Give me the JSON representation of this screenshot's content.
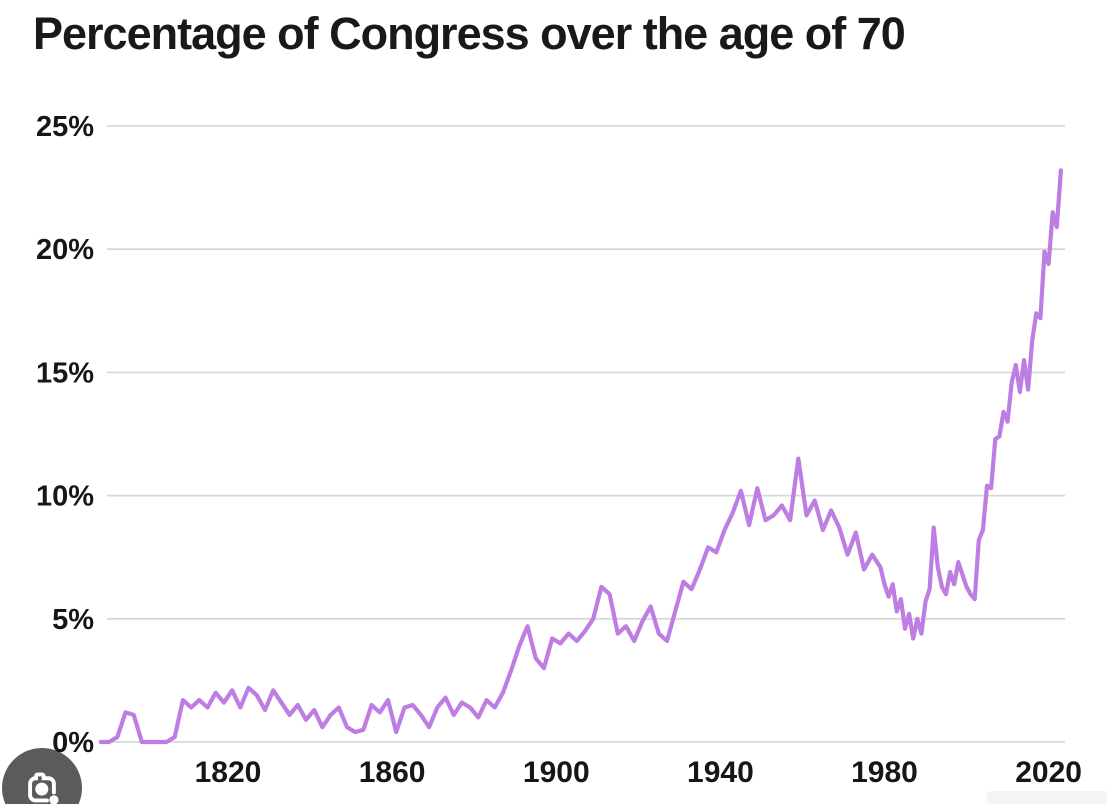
{
  "title": "Percentage of Congress over the age of 70",
  "colors": {
    "line": "#bd7de3",
    "grid": "#d8d8d8",
    "axis_text": "#161616",
    "title_text": "#191919",
    "lens_button_bg": "#3e3e3e",
    "lens_glyph": "#ffffff",
    "bottom_bar": "#f4f4f5",
    "background": "#ffffff"
  },
  "icons": {
    "lens_button": "camera-lens-icon"
  },
  "chart_data": {
    "type": "line",
    "title": "Percentage of Congress over the age of 70",
    "xlabel": "",
    "ylabel": "",
    "legend": "none",
    "grid": "horizontal",
    "xlim": [
      1790.5,
      2024
    ],
    "ylim": [
      0,
      25
    ],
    "xticks": {
      "values": [
        1820,
        1860,
        1900,
        1940,
        1980,
        2020
      ],
      "labels": [
        "1820",
        "1860",
        "1900",
        "1940",
        "1980",
        "2020"
      ]
    },
    "yticks": {
      "values": [
        0,
        5,
        10,
        15,
        20,
        25
      ],
      "labels": [
        "0%",
        "5%",
        "10%",
        "15%",
        "20%",
        "25%"
      ]
    },
    "series_name": "Percentage of Congress over the age of 70",
    "points": [
      [
        1789,
        0
      ],
      [
        1791,
        0
      ],
      [
        1793,
        0.2
      ],
      [
        1795,
        1.2
      ],
      [
        1797,
        1.1
      ],
      [
        1799,
        0
      ],
      [
        1801,
        0
      ],
      [
        1803,
        0
      ],
      [
        1805,
        0
      ],
      [
        1807,
        0.2
      ],
      [
        1809,
        1.7
      ],
      [
        1811,
        1.4
      ],
      [
        1813,
        1.7
      ],
      [
        1815,
        1.4
      ],
      [
        1817,
        2.0
      ],
      [
        1819,
        1.6
      ],
      [
        1821,
        2.1
      ],
      [
        1823,
        1.4
      ],
      [
        1825,
        2.2
      ],
      [
        1827,
        1.9
      ],
      [
        1829,
        1.3
      ],
      [
        1831,
        2.1
      ],
      [
        1833,
        1.6
      ],
      [
        1835,
        1.1
      ],
      [
        1837,
        1.5
      ],
      [
        1839,
        0.9
      ],
      [
        1841,
        1.3
      ],
      [
        1843,
        0.6
      ],
      [
        1845,
        1.1
      ],
      [
        1847,
        1.4
      ],
      [
        1849,
        0.6
      ],
      [
        1851,
        0.4
      ],
      [
        1853,
        0.5
      ],
      [
        1855,
        1.5
      ],
      [
        1857,
        1.2
      ],
      [
        1859,
        1.7
      ],
      [
        1861,
        0.4
      ],
      [
        1863,
        1.4
      ],
      [
        1865,
        1.5
      ],
      [
        1867,
        1.1
      ],
      [
        1869,
        0.6
      ],
      [
        1871,
        1.4
      ],
      [
        1873,
        1.8
      ],
      [
        1875,
        1.1
      ],
      [
        1877,
        1.6
      ],
      [
        1879,
        1.4
      ],
      [
        1881,
        1.0
      ],
      [
        1883,
        1.7
      ],
      [
        1885,
        1.4
      ],
      [
        1887,
        2.0
      ],
      [
        1889,
        2.9
      ],
      [
        1891,
        3.9
      ],
      [
        1893,
        4.7
      ],
      [
        1895,
        3.4
      ],
      [
        1897,
        3.0
      ],
      [
        1899,
        4.2
      ],
      [
        1901,
        4.0
      ],
      [
        1903,
        4.4
      ],
      [
        1905,
        4.1
      ],
      [
        1907,
        4.5
      ],
      [
        1909,
        5.0
      ],
      [
        1911,
        6.3
      ],
      [
        1913,
        6.0
      ],
      [
        1915,
        4.4
      ],
      [
        1917,
        4.7
      ],
      [
        1919,
        4.1
      ],
      [
        1921,
        4.9
      ],
      [
        1923,
        5.5
      ],
      [
        1925,
        4.4
      ],
      [
        1927,
        4.1
      ],
      [
        1929,
        5.3
      ],
      [
        1931,
        6.5
      ],
      [
        1933,
        6.2
      ],
      [
        1935,
        7.0
      ],
      [
        1937,
        7.9
      ],
      [
        1939,
        7.7
      ],
      [
        1941,
        8.6
      ],
      [
        1943,
        9.3
      ],
      [
        1945,
        10.2
      ],
      [
        1947,
        8.8
      ],
      [
        1949,
        10.3
      ],
      [
        1951,
        9.0
      ],
      [
        1953,
        9.2
      ],
      [
        1955,
        9.6
      ],
      [
        1957,
        9.0
      ],
      [
        1959,
        11.5
      ],
      [
        1961,
        9.2
      ],
      [
        1963,
        9.8
      ],
      [
        1965,
        8.6
      ],
      [
        1967,
        9.4
      ],
      [
        1969,
        8.7
      ],
      [
        1971,
        7.6
      ],
      [
        1973,
        8.5
      ],
      [
        1975,
        7.0
      ],
      [
        1977,
        7.6
      ],
      [
        1979,
        7.1
      ],
      [
        1980,
        6.4
      ],
      [
        1981,
        5.9
      ],
      [
        1982,
        6.4
      ],
      [
        1983,
        5.3
      ],
      [
        1984,
        5.8
      ],
      [
        1985,
        4.6
      ],
      [
        1986,
        5.2
      ],
      [
        1987,
        4.2
      ],
      [
        1988,
        5.0
      ],
      [
        1989,
        4.4
      ],
      [
        1990,
        5.7
      ],
      [
        1991,
        6.2
      ],
      [
        1992,
        8.7
      ],
      [
        1993,
        7.1
      ],
      [
        1994,
        6.3
      ],
      [
        1995,
        6.0
      ],
      [
        1996,
        6.9
      ],
      [
        1997,
        6.4
      ],
      [
        1998,
        7.3
      ],
      [
        1999,
        6.8
      ],
      [
        2000,
        6.3
      ],
      [
        2001,
        6.0
      ],
      [
        2002,
        5.8
      ],
      [
        2003,
        8.2
      ],
      [
        2004,
        8.6
      ],
      [
        2005,
        10.4
      ],
      [
        2006,
        10.3
      ],
      [
        2007,
        12.3
      ],
      [
        2008,
        12.4
      ],
      [
        2009,
        13.4
      ],
      [
        2010,
        13.0
      ],
      [
        2011,
        14.6
      ],
      [
        2012,
        15.3
      ],
      [
        2013,
        14.2
      ],
      [
        2014,
        15.5
      ],
      [
        2015,
        14.3
      ],
      [
        2016,
        16.3
      ],
      [
        2017,
        17.4
      ],
      [
        2018,
        17.2
      ],
      [
        2019,
        19.9
      ],
      [
        2020,
        19.4
      ],
      [
        2021,
        21.5
      ],
      [
        2022,
        20.9
      ],
      [
        2023,
        23.2
      ]
    ]
  }
}
